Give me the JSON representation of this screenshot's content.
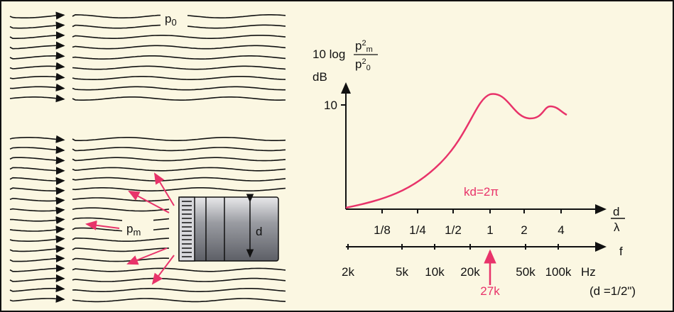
{
  "labels": {
    "p0": {
      "base": "p",
      "sub": "0"
    },
    "pm": {
      "base": "p",
      "sub": "m"
    },
    "mic_d": "d"
  },
  "graph": {
    "y_label": {
      "prefix": "10 log",
      "num": {
        "base": "p",
        "sup": "2",
        "sub": "m"
      },
      "den": {
        "base": "p",
        "sup": "2",
        "sub": "0"
      },
      "unit": "dB"
    },
    "y_tick": "10",
    "annotation": "kd=2π",
    "x_label": {
      "num": "d",
      "den": "λ"
    },
    "ratio_ticks": [
      "1/8",
      "1/4",
      "1/2",
      "1",
      "2",
      "4"
    ],
    "freq_label": "f",
    "freq_ticks": [
      "2k",
      "5k",
      "10k",
      "20k",
      "50k",
      "100k"
    ],
    "freq_unit": "Hz",
    "marker": "27k",
    "note": "(d =1/2\")"
  }
}
